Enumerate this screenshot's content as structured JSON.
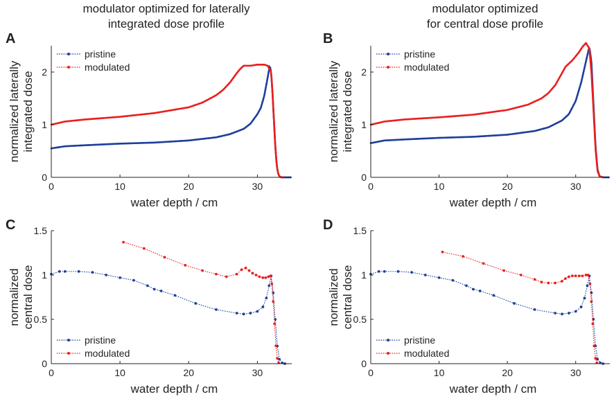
{
  "colors": {
    "pristine": "#1f3f9a",
    "modulated": "#e8201e",
    "axis": "#222222"
  },
  "column_titles": [
    {
      "line1": "modulator optimized for laterally",
      "line2": "integrated dose profile"
    },
    {
      "line1": "modulator optimized",
      "line2": "for central dose profile"
    }
  ],
  "chart_data": [
    {
      "panel": "A",
      "type": "line",
      "xlabel": "water depth / cm",
      "ylabel": [
        "normalized laterally",
        "integrated dose"
      ],
      "xlim": [
        0,
        35
      ],
      "ylim": [
        0,
        2.5
      ],
      "xticks": [
        0,
        10,
        20,
        30
      ],
      "xtick_labels": [
        "0",
        "10",
        "20",
        "30"
      ],
      "yticks": [
        0,
        1,
        2
      ],
      "ytick_labels": [
        "0",
        "1",
        "2"
      ],
      "legend": {
        "position": "top-left",
        "entries": [
          "pristine",
          "modulated"
        ]
      },
      "series": [
        {
          "name": "pristine",
          "color": "#1f3f9a",
          "style": "dense",
          "x": [
            0,
            2,
            5,
            10,
            15,
            20,
            24,
            26,
            28,
            29,
            30,
            30.5,
            31,
            31.5,
            31.8,
            32.0,
            32.2,
            32.4,
            32.6,
            32.8,
            33.0,
            33.2,
            33.5,
            34.0,
            35.0
          ],
          "y": [
            0.55,
            0.59,
            0.61,
            0.64,
            0.66,
            0.7,
            0.76,
            0.82,
            0.92,
            1.02,
            1.2,
            1.32,
            1.55,
            1.9,
            2.12,
            2.0,
            1.6,
            1.1,
            0.6,
            0.25,
            0.08,
            0.02,
            0.0,
            0.0,
            0.0
          ]
        },
        {
          "name": "modulated",
          "color": "#e8201e",
          "style": "dense",
          "x": [
            0,
            2,
            5,
            10,
            15,
            20,
            22,
            24,
            25,
            26,
            27,
            27.5,
            28,
            28.5,
            29,
            30,
            31,
            31.5,
            32.0,
            32.2,
            32.4,
            32.6,
            32.8,
            33.0,
            33.2,
            33.5,
            34.0
          ],
          "y": [
            1.0,
            1.06,
            1.1,
            1.15,
            1.22,
            1.33,
            1.42,
            1.56,
            1.66,
            1.8,
            1.98,
            2.06,
            2.12,
            2.12,
            2.12,
            2.14,
            2.14,
            2.12,
            2.0,
            1.6,
            1.1,
            0.6,
            0.25,
            0.08,
            0.02,
            0.0,
            0.0
          ]
        }
      ]
    },
    {
      "panel": "B",
      "type": "line",
      "xlabel": "water depth / cm",
      "ylabel": [
        "normalized laterally",
        "integrated dose"
      ],
      "xlim": [
        0,
        35
      ],
      "ylim": [
        0,
        2.5
      ],
      "xticks": [
        0,
        10,
        20,
        30
      ],
      "xtick_labels": [
        "0",
        "10",
        "20",
        "30"
      ],
      "yticks": [
        0,
        1,
        2
      ],
      "ytick_labels": [
        "0",
        "1",
        "2"
      ],
      "legend": {
        "position": "top-left",
        "entries": [
          "pristine",
          "modulated"
        ]
      },
      "series": [
        {
          "name": "pristine",
          "color": "#1f3f9a",
          "style": "dense",
          "x": [
            0,
            2,
            5,
            10,
            15,
            20,
            24,
            26,
            28,
            29,
            30,
            30.8,
            31.5,
            32.0,
            32.3,
            32.6,
            32.9,
            33.2,
            33.5,
            34.0,
            35.0
          ],
          "y": [
            0.65,
            0.7,
            0.72,
            0.75,
            0.77,
            0.81,
            0.88,
            0.95,
            1.08,
            1.2,
            1.45,
            1.8,
            2.2,
            2.48,
            2.2,
            1.4,
            0.6,
            0.15,
            0.02,
            0.0,
            0.0
          ]
        },
        {
          "name": "modulated",
          "color": "#e8201e",
          "style": "dense",
          "x": [
            0,
            2,
            5,
            10,
            15,
            20,
            23,
            25,
            26,
            27,
            28,
            28.5,
            29,
            29.5,
            30,
            30.5,
            31,
            31.5,
            32.0,
            32.3,
            32.6,
            32.9,
            33.2,
            33.5,
            34.0
          ],
          "y": [
            1.0,
            1.06,
            1.1,
            1.14,
            1.19,
            1.28,
            1.38,
            1.5,
            1.6,
            1.75,
            1.98,
            2.1,
            2.16,
            2.22,
            2.3,
            2.38,
            2.48,
            2.55,
            2.45,
            2.0,
            1.3,
            0.55,
            0.12,
            0.02,
            0.0
          ]
        }
      ]
    },
    {
      "panel": "C",
      "type": "line",
      "xlabel": "water depth / cm",
      "ylabel": [
        "normalized",
        "central dose"
      ],
      "xlim": [
        0,
        35
      ],
      "ylim": [
        0,
        1.5
      ],
      "xticks": [
        0,
        10,
        20,
        30
      ],
      "xtick_labels": [
        "0",
        "10",
        "20",
        "30"
      ],
      "yticks": [
        0,
        0.5,
        1,
        1.5
      ],
      "ytick_labels": [
        "0",
        "0.5",
        "1",
        "1.5"
      ],
      "legend": {
        "position": "bottom-left",
        "entries": [
          "pristine",
          "modulated"
        ]
      },
      "series": [
        {
          "name": "pristine",
          "color": "#1f3f9a",
          "style": "sparse",
          "x": [
            0,
            1.2,
            2,
            4,
            6,
            8,
            10,
            12,
            14,
            15,
            16,
            18,
            21,
            24,
            27,
            28,
            29,
            30,
            30.8,
            31.3,
            31.7,
            32.0,
            32.3,
            32.6,
            32.9,
            33.2,
            33.6,
            34.0
          ],
          "y": [
            1.01,
            1.04,
            1.04,
            1.04,
            1.03,
            1.0,
            0.97,
            0.94,
            0.88,
            0.84,
            0.82,
            0.77,
            0.68,
            0.61,
            0.57,
            0.56,
            0.57,
            0.59,
            0.64,
            0.74,
            0.88,
            0.99,
            0.8,
            0.5,
            0.2,
            0.05,
            0.01,
            0.0
          ]
        },
        {
          "name": "modulated",
          "color": "#e8201e",
          "style": "sparse",
          "x": [
            10.5,
            13.5,
            16.5,
            19.5,
            22,
            24,
            25.5,
            27,
            27.7,
            28.3,
            28.8,
            29.3,
            29.8,
            30.3,
            30.8,
            31.2,
            31.6,
            31.9,
            32.1,
            32.3,
            32.5,
            32.7,
            32.9,
            33.1
          ],
          "y": [
            1.37,
            1.3,
            1.2,
            1.11,
            1.05,
            1.01,
            0.98,
            1.01,
            1.06,
            1.08,
            1.05,
            1.02,
            1.0,
            0.98,
            0.97,
            0.97,
            0.98,
            0.99,
            0.9,
            0.7,
            0.45,
            0.2,
            0.06,
            0.01
          ]
        }
      ]
    },
    {
      "panel": "D",
      "type": "line",
      "xlabel": "water depth / cm",
      "ylabel": [
        "normalized",
        "central dose"
      ],
      "xlim": [
        0,
        35
      ],
      "ylim": [
        0,
        1.5
      ],
      "xticks": [
        0,
        10,
        20,
        30
      ],
      "xtick_labels": [
        "0",
        "10",
        "20",
        "30"
      ],
      "yticks": [
        0,
        0.5,
        1,
        1.5
      ],
      "ytick_labels": [
        "0",
        "0.5",
        "1",
        "1.5"
      ],
      "legend": {
        "position": "bottom-left",
        "entries": [
          "pristine",
          "modulated"
        ]
      },
      "series": [
        {
          "name": "pristine",
          "color": "#1f3f9a",
          "style": "sparse",
          "x": [
            0,
            1.2,
            2,
            4,
            6,
            8,
            10,
            12,
            14,
            15,
            16,
            18,
            21,
            24,
            27,
            28,
            29,
            30,
            30.8,
            31.3,
            31.7,
            32.0,
            32.3,
            32.6,
            32.9,
            33.2,
            33.6,
            34.0
          ],
          "y": [
            1.01,
            1.04,
            1.04,
            1.04,
            1.03,
            1.0,
            0.97,
            0.94,
            0.88,
            0.84,
            0.82,
            0.77,
            0.68,
            0.61,
            0.57,
            0.56,
            0.57,
            0.59,
            0.64,
            0.74,
            0.88,
            0.99,
            0.8,
            0.5,
            0.2,
            0.05,
            0.01,
            0.0
          ]
        },
        {
          "name": "modulated",
          "color": "#e8201e",
          "style": "sparse",
          "x": [
            10.5,
            13.5,
            16.5,
            19.5,
            22,
            24,
            25,
            26,
            27,
            28,
            28.5,
            29,
            29.5,
            30,
            30.5,
            31,
            31.5,
            31.8,
            32.1,
            32.3,
            32.5,
            32.7,
            32.9,
            33.1
          ],
          "y": [
            1.26,
            1.21,
            1.13,
            1.05,
            1.0,
            0.95,
            0.92,
            0.91,
            0.91,
            0.93,
            0.96,
            0.98,
            0.99,
            0.99,
            0.99,
            0.99,
            1.0,
            1.0,
            0.9,
            0.7,
            0.45,
            0.2,
            0.06,
            0.01
          ]
        }
      ]
    }
  ]
}
